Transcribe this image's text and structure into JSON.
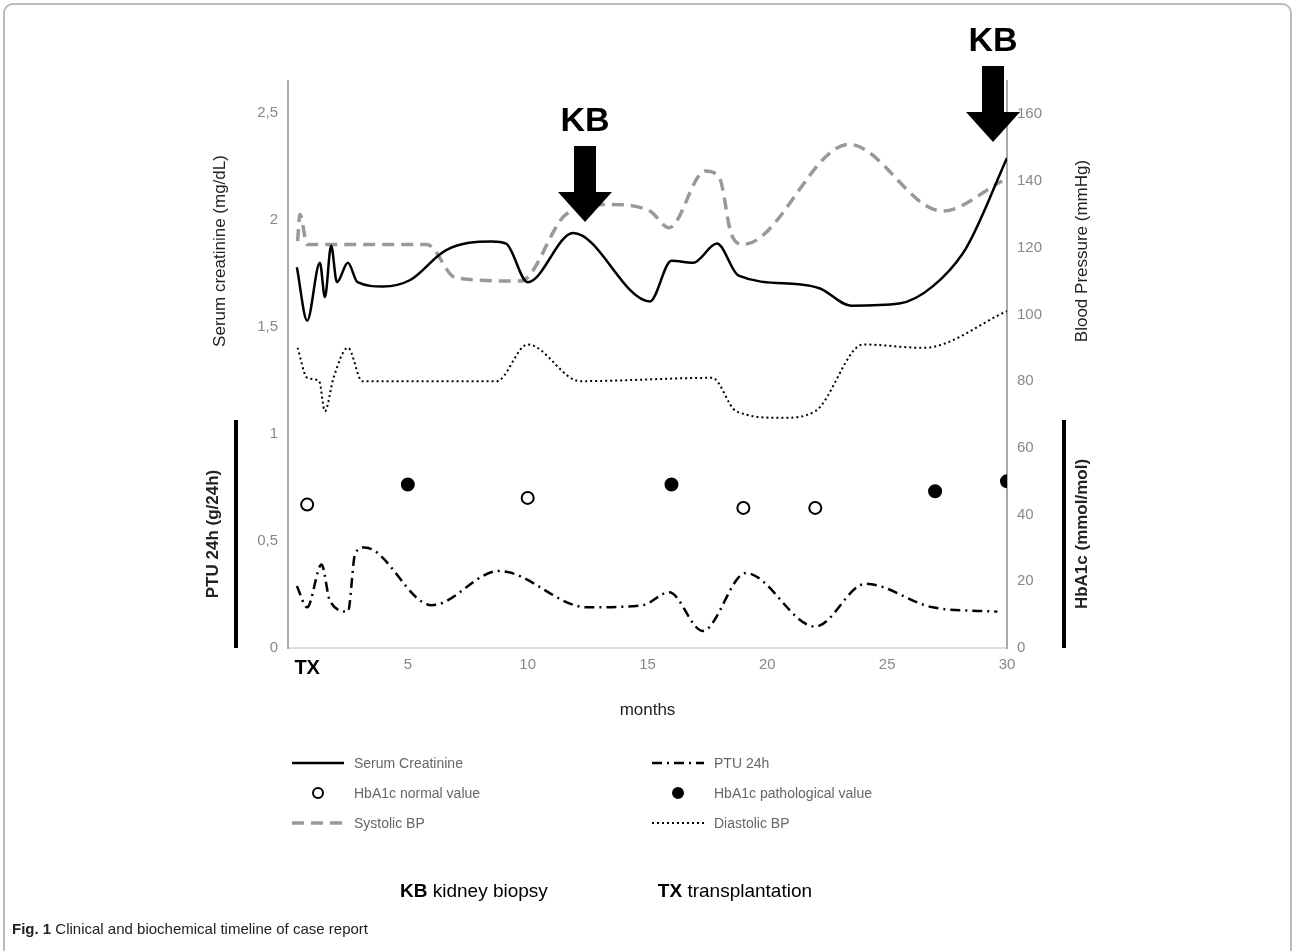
{
  "chart_data": {
    "type": "line",
    "title": "Fig. 1 Clinical and biochemical timeline of case report",
    "xlabel": "months",
    "ylabel": "Serum creatinine (mg/dL)",
    "y2label": "Blood Pressure (mmHg)",
    "xlim": [
      0,
      30
    ],
    "xticks": [
      {
        "value": 0.8,
        "label": "TX"
      },
      5,
      10,
      15,
      20,
      25,
      30
    ],
    "ylim": [
      0,
      2.65
    ],
    "yticks": [
      0,
      {
        "value": 0.5,
        "label": "0,5"
      },
      1,
      {
        "value": 1.5,
        "label": "1,5"
      },
      2,
      {
        "value": 2.5,
        "label": "2,5"
      }
    ],
    "y2lim": [
      0,
      170
    ],
    "y2ticks": [
      0,
      20,
      40,
      60,
      80,
      100,
      120,
      140,
      160
    ],
    "grid": false,
    "legend": "bottom",
    "marker": "none",
    "series": [
      {
        "name": "Serum Creatinine",
        "color": "#000000",
        "line_style": "solid",
        "axis": "y",
        "x": [
          0.37,
          0.8,
          1.33,
          1.54,
          1.8,
          2.04,
          2.5,
          2.9,
          3.96,
          5.1,
          6.6,
          8.5,
          9.1,
          10,
          11.9,
          15.1,
          16,
          16.9,
          17.9,
          18.8,
          21.3,
          22.2,
          23.5,
          25.5,
          26.9,
          28.3,
          30
        ],
        "values": [
          1.78,
          1.53,
          1.8,
          1.64,
          1.88,
          1.71,
          1.8,
          1.71,
          1.69,
          1.72,
          1.86,
          1.9,
          1.89,
          1.71,
          1.94,
          1.62,
          1.81,
          1.8,
          1.89,
          1.74,
          1.7,
          1.68,
          1.6,
          1.61,
          1.69,
          1.87,
          2.29
        ]
      },
      {
        "name": "PTU 24h",
        "color": "#000000",
        "line_style": "dashdot",
        "axis": "y",
        "x": [
          0.37,
          0.8,
          1.4,
          1.75,
          2.5,
          2.8,
          3.2,
          6,
          8.8,
          12.5,
          14.8,
          15.9,
          17.3,
          19.1,
          22,
          24.1,
          26.9,
          29.6
        ],
        "values": [
          0.29,
          0.19,
          0.39,
          0.22,
          0.17,
          0.44,
          0.47,
          0.2,
          0.36,
          0.19,
          0.2,
          0.26,
          0.08,
          0.35,
          0.1,
          0.3,
          0.19,
          0.17
        ]
      },
      {
        "name": "HbA1c normal value",
        "type": "scatter",
        "color": "#ffffff",
        "marker": "circle",
        "axis": "y2",
        "x": [
          0.8,
          10,
          19,
          22
        ],
        "values": [
          43,
          45,
          42,
          42
        ]
      },
      {
        "name": "HbA1c pathological value",
        "type": "scatter",
        "color": "#000000",
        "marker": "circle",
        "axis": "y2",
        "x": [
          5,
          16,
          27,
          30
        ],
        "values": [
          49,
          49,
          47,
          50
        ]
      },
      {
        "name": "Systolic BP",
        "color": "#999999",
        "line_style": "dashed",
        "axis": "y2",
        "x": [
          0.4,
          0.5,
          0.8,
          5.8,
          7,
          9.7,
          11.6,
          13.3,
          15.1,
          15.9,
          17.4,
          18,
          18.5,
          19,
          23.4,
          27.3,
          29.8
        ],
        "values": [
          122,
          130,
          121,
          121,
          111,
          110,
          130,
          133,
          131,
          126,
          143,
          141,
          124,
          121,
          151,
          131,
          140
        ]
      },
      {
        "name": "Diastolic BP",
        "color": "#000000",
        "line_style": "dotted",
        "axis": "y2",
        "x": [
          0.4,
          0.8,
          1.3,
          1.54,
          1.9,
          2.5,
          3.1,
          8.7,
          10,
          12.2,
          17.7,
          18.7,
          20.6,
          22,
          24,
          26.5,
          30
        ],
        "values": [
          90,
          81,
          80,
          71,
          81,
          90,
          80,
          80,
          91,
          80,
          81,
          71,
          69,
          71,
          91,
          90,
          101
        ]
      }
    ],
    "annotations": [
      "KB",
      "KB",
      "PTU 24h  (g/24h)",
      "HbA1c (mmol/mol)",
      "KB kidney biopsy",
      "TX transplantation"
    ]
  }
}
